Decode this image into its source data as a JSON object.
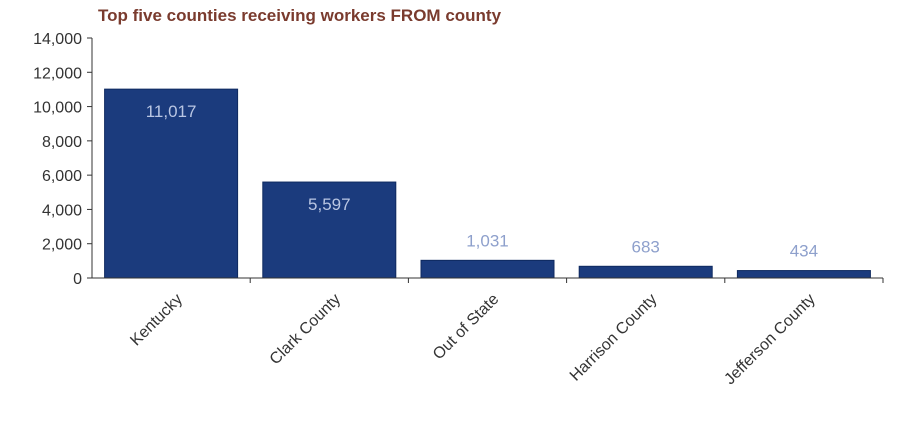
{
  "chart_data": {
    "type": "bar",
    "title": "Top five counties receiving workers FROM county",
    "xlabel": "",
    "ylabel": "",
    "categories": [
      "Kentucky",
      "Clark County",
      "Out of State",
      "Harrison County",
      "Jefferson County"
    ],
    "values": [
      11017,
      5597,
      1031,
      683,
      434
    ],
    "data_labels": [
      "11,017",
      "5,597",
      "1,031",
      "683",
      "434"
    ],
    "ylim": [
      0,
      14000
    ],
    "yticks": [
      0,
      2000,
      4000,
      6000,
      8000,
      10000,
      12000,
      14000
    ],
    "ytick_labels": [
      "0",
      "2,000",
      "4,000",
      "6,000",
      "8,000",
      "10,000",
      "12,000",
      "14,000"
    ],
    "grid": false,
    "legend": "none",
    "colors": {
      "bar": "#1b3b7d",
      "title": "#7a3b2e",
      "label_inside": "#b9c6e3",
      "label_outside": "#8ea0cc",
      "axis": "#333333"
    }
  }
}
